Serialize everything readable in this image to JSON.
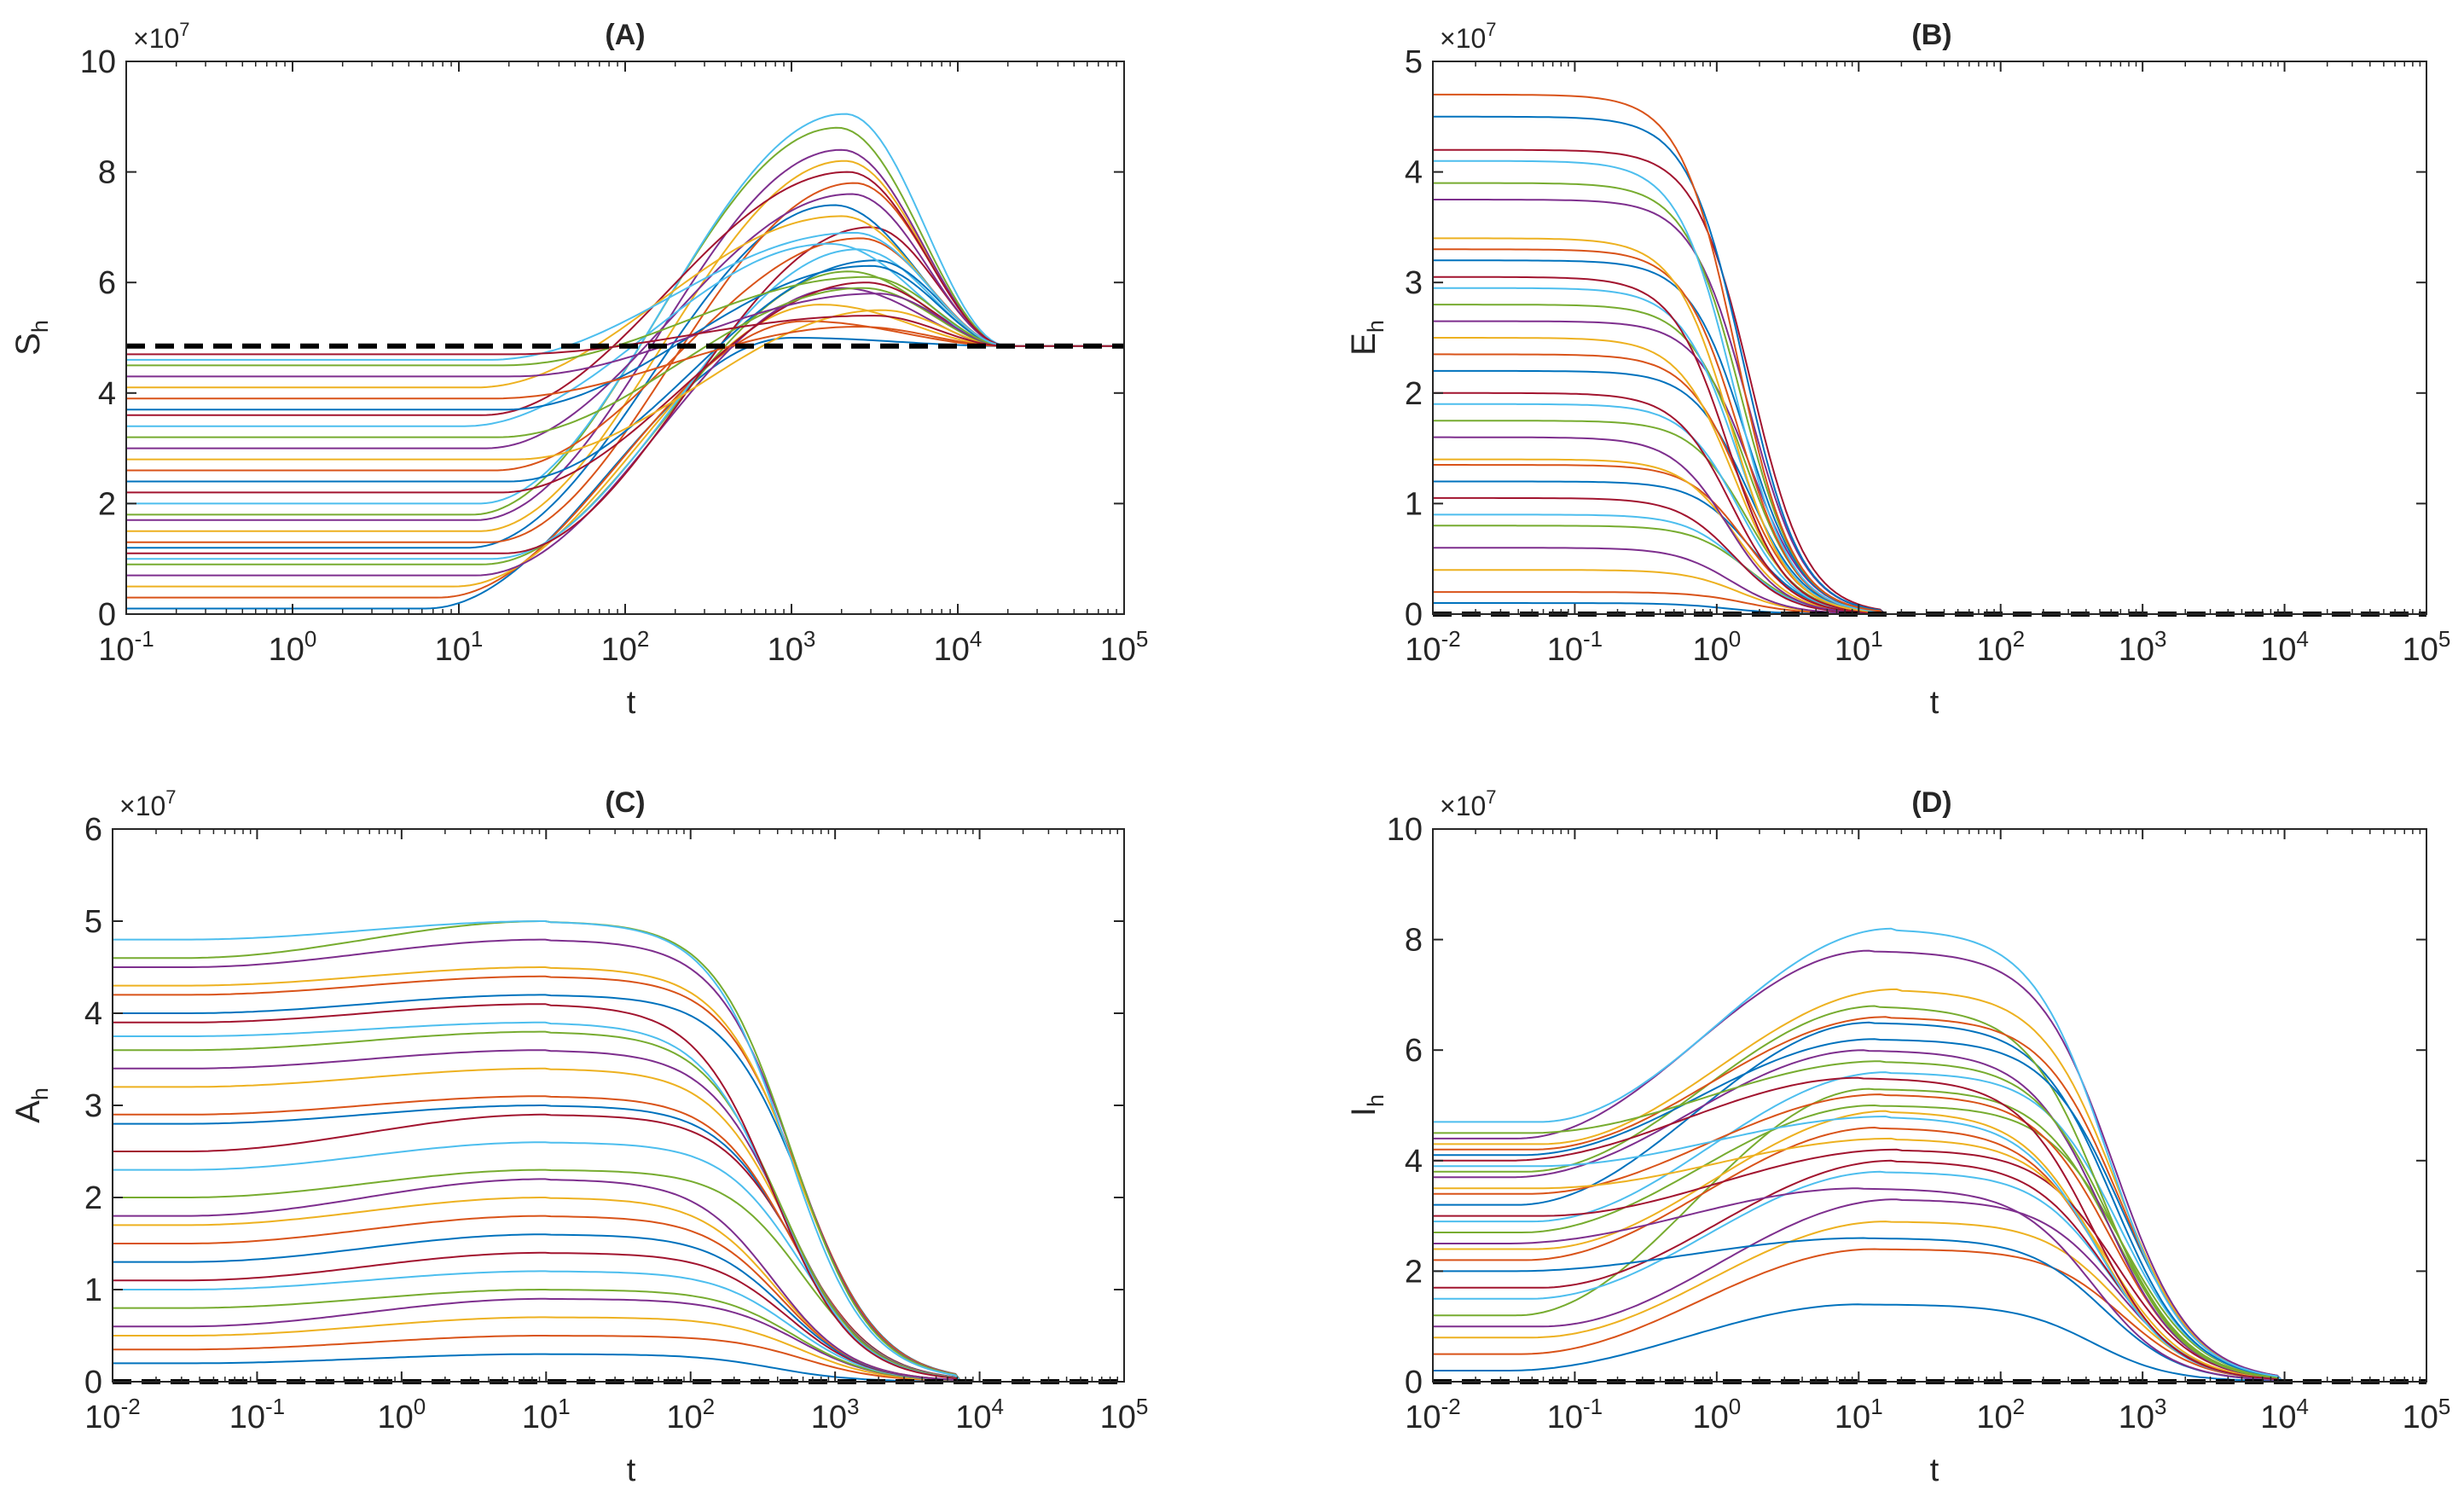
{
  "figure": {
    "background": "#ffffff",
    "axis_color": "#262626"
  },
  "chart_data": [
    {
      "type": "line",
      "title": "(A)",
      "xlabel": "t",
      "ylabel": "S",
      "ylabel_sub": "h",
      "y_exponent": "×10",
      "y_exponent_power": "7",
      "x_scale": "log",
      "xlim": [
        0.1,
        100000
      ],
      "ylim": [
        0,
        10
      ],
      "x_ticks": [
        {
          "base": "10",
          "exp": "-1",
          "value": 0.1
        },
        {
          "base": "10",
          "exp": "0",
          "value": 1
        },
        {
          "base": "10",
          "exp": "1",
          "value": 10
        },
        {
          "base": "10",
          "exp": "2",
          "value": 100
        },
        {
          "base": "10",
          "exp": "3",
          "value": 1000
        },
        {
          "base": "10",
          "exp": "4",
          "value": 10000
        },
        {
          "base": "10",
          "exp": "5",
          "value": 100000
        }
      ],
      "y_ticks": [
        "0",
        "2",
        "4",
        "6",
        "8",
        "10"
      ],
      "equilibrium": 4.85,
      "initial_values": [
        0.1,
        0.3,
        0.5,
        0.7,
        0.9,
        1.0,
        1.1,
        1.2,
        1.3,
        1.5,
        1.7,
        1.8,
        2.0,
        2.2,
        2.4,
        2.6,
        2.8,
        3.0,
        3.2,
        3.4,
        3.6,
        3.7,
        3.9,
        4.1,
        4.3,
        4.5,
        4.6,
        4.7
      ],
      "peak_values": [
        5.0,
        5.3,
        5.6,
        5.9,
        6.2,
        6.6,
        7.0,
        7.4,
        7.8,
        8.2,
        8.4,
        8.8,
        9.05,
        6.0,
        6.4,
        6.8,
        5.5,
        7.6,
        5.9,
        6.7,
        8.0,
        6.3,
        5.2,
        7.2,
        5.8,
        6.1,
        6.9,
        5.4
      ],
      "peak_t": [
        1000,
        1200,
        1500,
        2000,
        2200,
        2500,
        3000,
        1800,
        2400,
        2100,
        2000,
        1900,
        2100,
        2800,
        3200,
        2600,
        3500,
        2300,
        2700,
        1700,
        2200,
        3000,
        2500,
        2000,
        3300,
        2900,
        2400,
        3100
      ],
      "convergence_t": 20000
    },
    {
      "type": "line",
      "title": "(B)",
      "xlabel": "t",
      "ylabel": "E",
      "ylabel_sub": "h",
      "y_exponent": "×10",
      "y_exponent_power": "7",
      "x_scale": "log",
      "xlim": [
        0.01,
        100000
      ],
      "ylim": [
        0,
        5
      ],
      "x_ticks": [
        {
          "base": "10",
          "exp": "-2",
          "value": 0.01
        },
        {
          "base": "10",
          "exp": "-1",
          "value": 0.1
        },
        {
          "base": "10",
          "exp": "0",
          "value": 1
        },
        {
          "base": "10",
          "exp": "1",
          "value": 10
        },
        {
          "base": "10",
          "exp": "2",
          "value": 100
        },
        {
          "base": "10",
          "exp": "3",
          "value": 1000
        },
        {
          "base": "10",
          "exp": "4",
          "value": 10000
        },
        {
          "base": "10",
          "exp": "5",
          "value": 100000
        }
      ],
      "y_ticks": [
        "0",
        "1",
        "2",
        "3",
        "4",
        "5"
      ],
      "equilibrium": 0,
      "initial_values": [
        0.1,
        0.2,
        0.4,
        0.6,
        0.8,
        0.9,
        1.05,
        1.2,
        1.35,
        1.4,
        1.6,
        1.75,
        1.9,
        2.0,
        2.2,
        2.35,
        2.5,
        2.65,
        2.8,
        2.95,
        3.05,
        3.2,
        3.3,
        3.4,
        3.75,
        3.9,
        4.1,
        4.2,
        4.5,
        4.7
      ],
      "decay_half_t": 1.5,
      "convergence_t": 15
    },
    {
      "type": "line",
      "title": "(C)",
      "xlabel": "t",
      "ylabel": "A",
      "ylabel_sub": "h",
      "y_exponent": "×10",
      "y_exponent_power": "7",
      "x_scale": "log",
      "xlim": [
        0.01,
        100000
      ],
      "ylim": [
        0,
        6
      ],
      "x_ticks": [
        {
          "base": "10",
          "exp": "-2",
          "value": 0.01
        },
        {
          "base": "10",
          "exp": "-1",
          "value": 0.1
        },
        {
          "base": "10",
          "exp": "0",
          "value": 1
        },
        {
          "base": "10",
          "exp": "1",
          "value": 10
        },
        {
          "base": "10",
          "exp": "2",
          "value": 100
        },
        {
          "base": "10",
          "exp": "3",
          "value": 1000
        },
        {
          "base": "10",
          "exp": "4",
          "value": 10000
        },
        {
          "base": "10",
          "exp": "5",
          "value": 100000
        }
      ],
      "y_ticks": [
        "0",
        "1",
        "2",
        "3",
        "4",
        "5",
        "6"
      ],
      "equilibrium": 0,
      "initial_values": [
        0.2,
        0.35,
        0.5,
        0.6,
        0.8,
        1.0,
        1.1,
        1.3,
        1.5,
        1.7,
        1.8,
        2.0,
        2.3,
        2.5,
        2.8,
        2.9,
        3.2,
        3.4,
        3.6,
        3.75,
        3.9,
        4.0,
        4.2,
        4.3,
        4.5,
        4.6,
        4.8
      ],
      "peak_values": [
        0.3,
        0.5,
        0.7,
        0.9,
        1.0,
        1.2,
        1.4,
        1.6,
        1.8,
        2.0,
        2.2,
        2.3,
        2.6,
        2.9,
        3.0,
        3.1,
        3.4,
        3.6,
        3.8,
        3.9,
        4.1,
        4.2,
        4.4,
        4.5,
        4.8,
        5.0,
        5.0
      ],
      "peak_t": 10,
      "decay_half_t": 500,
      "convergence_t": 7000
    },
    {
      "type": "line",
      "title": "(D)",
      "xlabel": "t",
      "ylabel": "I",
      "ylabel_sub": "h",
      "y_exponent": "×10",
      "y_exponent_power": "7",
      "x_scale": "log",
      "xlim": [
        0.01,
        100000
      ],
      "ylim": [
        0,
        10
      ],
      "x_ticks": [
        {
          "base": "10",
          "exp": "-2",
          "value": 0.01
        },
        {
          "base": "10",
          "exp": "-1",
          "value": 0.1
        },
        {
          "base": "10",
          "exp": "0",
          "value": 1
        },
        {
          "base": "10",
          "exp": "1",
          "value": 10
        },
        {
          "base": "10",
          "exp": "2",
          "value": 100
        },
        {
          "base": "10",
          "exp": "3",
          "value": 1000
        },
        {
          "base": "10",
          "exp": "4",
          "value": 10000
        },
        {
          "base": "10",
          "exp": "5",
          "value": 100000
        }
      ],
      "y_ticks": [
        "0",
        "2",
        "4",
        "6",
        "8",
        "10"
      ],
      "equilibrium": 0,
      "initial_values": [
        0.2,
        0.5,
        0.8,
        1.0,
        1.2,
        1.5,
        1.7,
        2.0,
        2.2,
        2.4,
        2.5,
        2.7,
        2.9,
        3.0,
        3.2,
        3.4,
        3.5,
        3.7,
        3.8,
        3.9,
        4.0,
        4.1,
        4.2,
        4.3,
        4.4,
        4.5,
        4.7
      ],
      "peak_values": [
        1.4,
        2.4,
        2.9,
        3.3,
        5.3,
        3.8,
        4.0,
        2.6,
        4.6,
        4.9,
        3.5,
        5.0,
        5.6,
        4.2,
        6.5,
        5.2,
        4.4,
        6.0,
        6.8,
        4.8,
        5.5,
        6.2,
        6.6,
        7.1,
        7.8,
        5.8,
        8.2
      ],
      "peak_t": 15,
      "decay_half_t": 600,
      "convergence_t": 9000
    }
  ]
}
